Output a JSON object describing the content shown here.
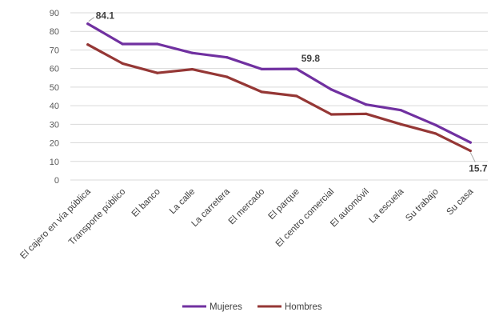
{
  "chart_data": {
    "type": "line",
    "categories": [
      "El cajero en vía pública",
      "Transporte público",
      "El banco",
      "La calle",
      "La carretera",
      "El mercado",
      "El parque",
      "El centro comercial",
      "El automóvil",
      "La escuela",
      "Su trabajo",
      "Su casa"
    ],
    "series": [
      {
        "name": "Mujeres",
        "color": "#7030a0",
        "values": [
          84.1,
          73.2,
          73.2,
          68.4,
          66.0,
          59.7,
          59.8,
          48.7,
          40.6,
          37.6,
          29.6,
          20.2
        ]
      },
      {
        "name": "Hombres",
        "color": "#953735",
        "values": [
          72.9,
          62.7,
          57.6,
          59.6,
          55.5,
          47.4,
          45.2,
          35.3,
          35.6,
          30.0,
          25.0,
          15.7
        ]
      }
    ],
    "data_labels": [
      {
        "series": 0,
        "index": 0,
        "text": "84.1"
      },
      {
        "series": 0,
        "index": 6,
        "text": "59.8"
      },
      {
        "series": 1,
        "index": 11,
        "text": "15.7"
      }
    ],
    "yticks": [
      "0",
      "10",
      "20",
      "30",
      "40",
      "50",
      "60",
      "70",
      "80",
      "90"
    ],
    "ylim": [
      0,
      90
    ],
    "grid": true,
    "legend": "bottom",
    "title": "",
    "xlabel": "",
    "ylabel": ""
  }
}
